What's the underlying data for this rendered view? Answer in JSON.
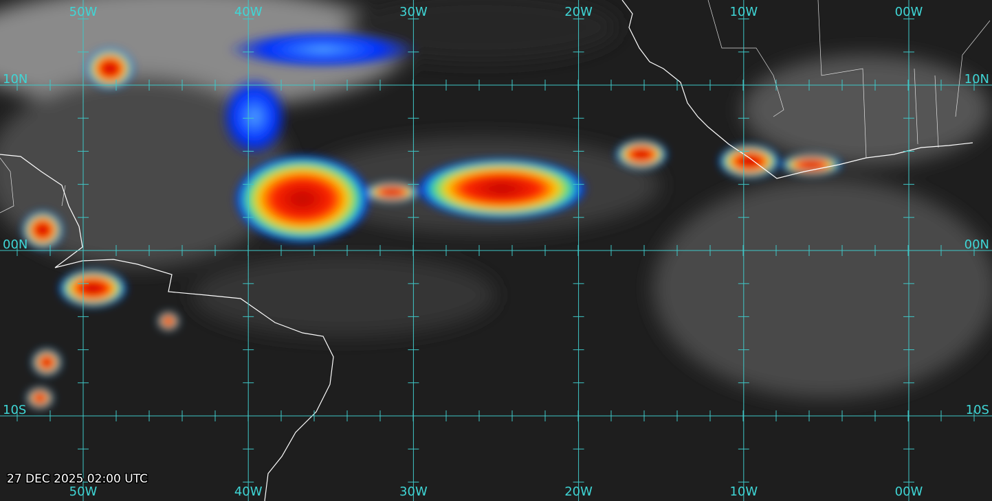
{
  "grid": {
    "longitude_labels": [
      "50W",
      "40W",
      "30W",
      "20W",
      "10W",
      "00W"
    ],
    "latitude_labels": [
      "10N",
      "00N",
      "10S"
    ]
  },
  "timestamp": "27 DEC 2025 02:00 UTC"
}
